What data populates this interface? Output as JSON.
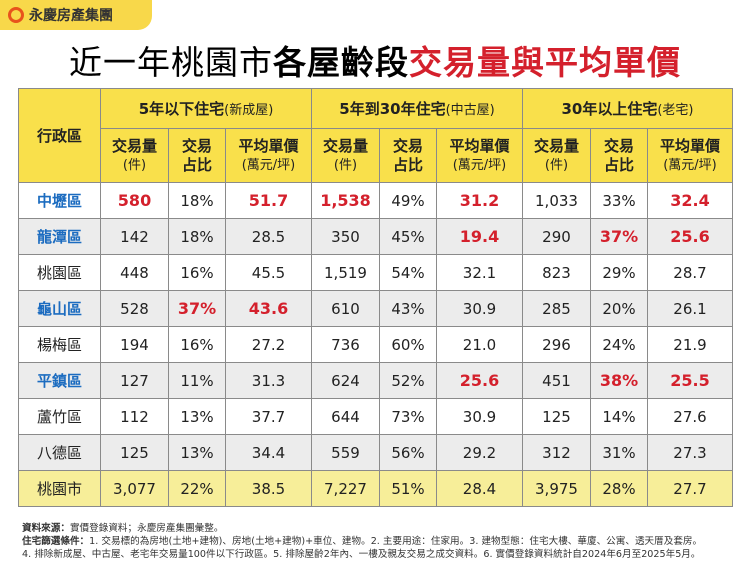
{
  "logo": "永慶房產集團",
  "title": {
    "light": "近一年桃園市",
    "bold": "各屋齡段",
    "red": "交易量與平均單價"
  },
  "table": {
    "corner": "行政區",
    "groups": [
      {
        "main": "5年以下住宅",
        "note": "(新成屋)"
      },
      {
        "main": "5年到30年住宅",
        "note": "(中古屋)"
      },
      {
        "main": "30年以上住宅",
        "note": "(老宅)"
      }
    ],
    "subheaders": [
      [
        "交易量",
        "(件)"
      ],
      [
        "交易",
        "占比"
      ],
      [
        "平均單價",
        "(萬元/坪)"
      ]
    ],
    "rows": [
      {
        "district": "中壢區",
        "blue": true,
        "cells": [
          "580",
          "18%",
          "51.7",
          "1,538",
          "49%",
          "31.2",
          "1,033",
          "33%",
          "32.4"
        ],
        "red": [
          0,
          2,
          3,
          5,
          8
        ]
      },
      {
        "district": "龍潭區",
        "blue": true,
        "cells": [
          "142",
          "18%",
          "28.5",
          "350",
          "45%",
          "19.4",
          "290",
          "37%",
          "25.6"
        ],
        "red": [
          5,
          7,
          8
        ]
      },
      {
        "district": "桃園區",
        "blue": false,
        "cells": [
          "448",
          "16%",
          "45.5",
          "1,519",
          "54%",
          "32.1",
          "823",
          "29%",
          "28.7"
        ],
        "red": []
      },
      {
        "district": "龜山區",
        "blue": true,
        "cells": [
          "528",
          "37%",
          "43.6",
          "610",
          "43%",
          "30.9",
          "285",
          "20%",
          "26.1"
        ],
        "red": [
          1,
          2
        ]
      },
      {
        "district": "楊梅區",
        "blue": false,
        "cells": [
          "194",
          "16%",
          "27.2",
          "736",
          "60%",
          "21.0",
          "296",
          "24%",
          "21.9"
        ],
        "red": []
      },
      {
        "district": "平鎮區",
        "blue": true,
        "cells": [
          "127",
          "11%",
          "31.3",
          "624",
          "52%",
          "25.6",
          "451",
          "38%",
          "25.5"
        ],
        "red": [
          5,
          7,
          8
        ]
      },
      {
        "district": "蘆竹區",
        "blue": false,
        "cells": [
          "112",
          "13%",
          "37.7",
          "644",
          "73%",
          "30.9",
          "125",
          "14%",
          "27.6"
        ],
        "red": []
      },
      {
        "district": "八德區",
        "blue": false,
        "cells": [
          "125",
          "13%",
          "34.4",
          "559",
          "56%",
          "29.2",
          "312",
          "31%",
          "27.3"
        ],
        "red": []
      },
      {
        "district": "桃園市",
        "blue": false,
        "cells": [
          "3,077",
          "22%",
          "38.5",
          "7,227",
          "51%",
          "28.4",
          "3,975",
          "28%",
          "27.7"
        ],
        "red": []
      }
    ]
  },
  "notes": [
    {
      "label": "資料來源：",
      "text": "實價登錄資料；永慶房產集團彙整。"
    },
    {
      "label": "住宅篩選條件：",
      "text": "1. 交易標的為房地(土地+建物)、房地(土地+建物)+車位、建物。2. 主要用途：住家用。3. 建物型態：住宅大樓、華廈、公寓、透天厝及套房。"
    },
    {
      "label": "",
      "text": "4. 排除新成屋、中古屋、老宅年交易量100件以下行政區。5. 排除屋齡2年內、一樓及親友交易之成交資料。6. 實價登錄資料統計自2024年6月至2025年5月。"
    }
  ]
}
